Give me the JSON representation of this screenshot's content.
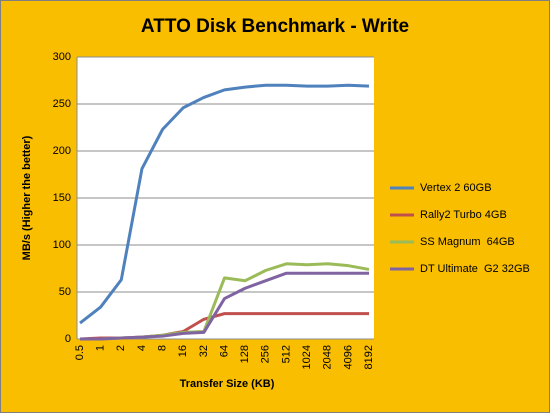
{
  "chart_data": {
    "type": "line",
    "title": "ATTO Disk Benchmark - Write",
    "x_label": "Transfer Size (KB)",
    "y_label": "MB/s (Higher the better)",
    "categories": [
      "0.5",
      "1",
      "2",
      "4",
      "8",
      "16",
      "32",
      "64",
      "128",
      "256",
      "512",
      "1024",
      "2048",
      "4096",
      "8192"
    ],
    "series": [
      {
        "name": "Vertex 2 60GB",
        "color": "#4f81bd",
        "values": [
          17,
          34,
          63,
          181,
          223,
          246,
          257,
          265,
          268,
          270,
          270,
          269,
          269,
          270,
          269
        ]
      },
      {
        "name": "Rally2 Turbo 4GB",
        "color": "#c0504d",
        "values": [
          0,
          1,
          1,
          2,
          4,
          8,
          21,
          27,
          27,
          27,
          27,
          27,
          27,
          27,
          27
        ]
      },
      {
        "name": "SS Magnum  64GB",
        "color": "#9bbb59",
        "values": [
          0,
          0,
          1,
          2,
          4,
          7,
          8,
          65,
          62,
          73,
          80,
          79,
          80,
          78,
          74
        ]
      },
      {
        "name": "DT Ultimate  G2 32GB",
        "color": "#8064a2",
        "values": [
          0,
          0,
          1,
          2,
          3,
          6,
          7,
          43,
          54,
          62,
          70,
          70,
          70,
          70,
          70
        ]
      }
    ],
    "ylim": [
      0,
      300
    ],
    "yticks": [
      0,
      50,
      100,
      150,
      200,
      250,
      300
    ],
    "grid": true,
    "legend": "right"
  }
}
